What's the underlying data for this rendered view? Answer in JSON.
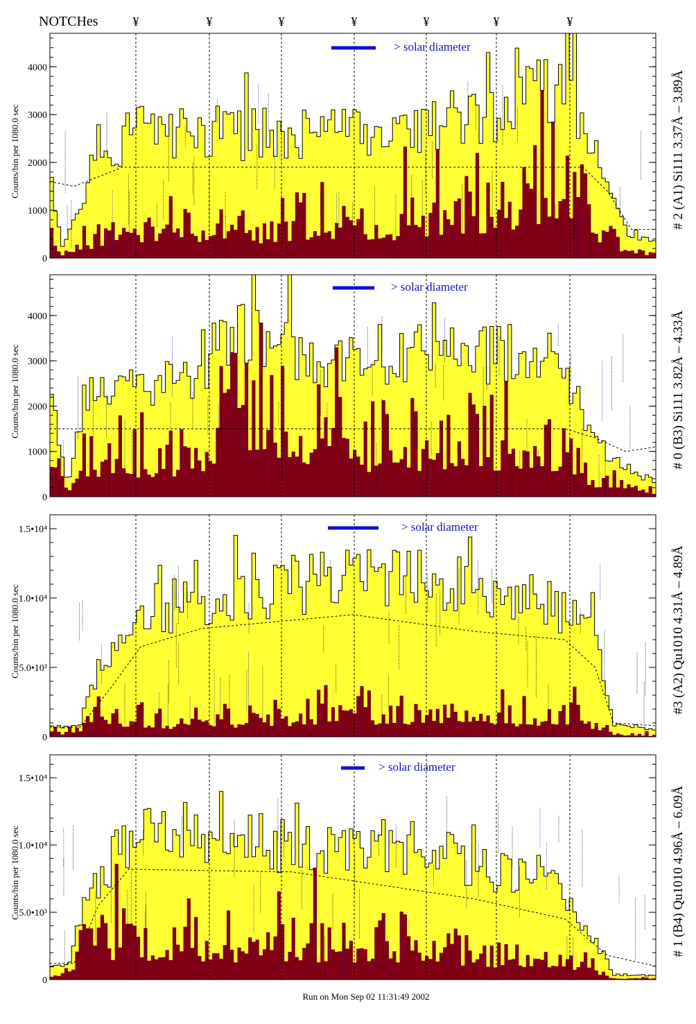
{
  "header": {
    "notches_label": "NOTCHes",
    "notch_symbol": "¥",
    "notch_count": 7
  },
  "footer": {
    "run_label": "Run on Mon Sep 02 11:31:49 2002"
  },
  "colors": {
    "yellow_fill": "#ffff33",
    "dark_fill": "#800018",
    "annotation_blue": "#1010d0",
    "annotation_purple": "#800080"
  },
  "chart_data": [
    {
      "type": "area",
      "panel_label": "# 2 (A1) Si111  3.37Å – 3.89Å",
      "ylabel": "Counts/bin per   1080.0 sec",
      "ylim": [
        0,
        4700
      ],
      "yticks": [
        0,
        1000,
        2000,
        3000,
        4000
      ],
      "ytick_labels": [
        "0",
        "1000",
        "2000",
        "3000",
        "4000"
      ],
      "legend_text": "> solar diameter",
      "series": [
        {
          "name": "total counts",
          "shape": [
            [
              0,
              1800
            ],
            [
              0.02,
              200
            ],
            [
              0.08,
              2200
            ],
            [
              0.15,
              2700
            ],
            [
              0.3,
              2600
            ],
            [
              0.5,
              2700
            ],
            [
              0.6,
              2800
            ],
            [
              0.7,
              2900
            ],
            [
              0.8,
              3400
            ],
            [
              0.85,
              3800
            ],
            [
              0.9,
              2200
            ],
            [
              0.95,
              600
            ],
            [
              1,
              300
            ]
          ]
        },
        {
          "name": "background counts",
          "shape": [
            [
              0,
              800
            ],
            [
              0.02,
              100
            ],
            [
              0.08,
              500
            ],
            [
              0.15,
              600
            ],
            [
              0.3,
              650
            ],
            [
              0.5,
              800
            ],
            [
              0.6,
              800
            ],
            [
              0.7,
              1000
            ],
            [
              0.8,
              1500
            ],
            [
              0.85,
              1800
            ],
            [
              0.9,
              800
            ],
            [
              0.95,
              200
            ],
            [
              1,
              100
            ]
          ]
        },
        {
          "name": "average level",
          "shape": [
            [
              0,
              1600
            ],
            [
              0.04,
              1500
            ],
            [
              0.08,
              1700
            ],
            [
              0.12,
              1900
            ],
            [
              0.88,
              1900
            ],
            [
              0.92,
              1400
            ],
            [
              0.96,
              600
            ],
            [
              1,
              600
            ]
          ]
        }
      ]
    },
    {
      "type": "area",
      "panel_label": "# 0 (B3) Si111  3.82Å – 4.33Å",
      "ylabel": "Counts/bin per   1080.0 sec",
      "ylim": [
        0,
        4900
      ],
      "yticks": [
        0,
        1000,
        2000,
        3000,
        4000
      ],
      "ytick_labels": [
        "0",
        "1000",
        "2000",
        "3000",
        "4000"
      ],
      "legend_text": "> solar diameter",
      "series": [
        {
          "name": "total counts",
          "shape": [
            [
              0,
              1800
            ],
            [
              0.03,
              300
            ],
            [
              0.06,
              2300
            ],
            [
              0.2,
              2500
            ],
            [
              0.25,
              2800
            ],
            [
              0.3,
              3800
            ],
            [
              0.4,
              3300
            ],
            [
              0.5,
              2900
            ],
            [
              0.7,
              3200
            ],
            [
              0.85,
              3000
            ],
            [
              0.9,
              1200
            ],
            [
              0.95,
              700
            ],
            [
              1,
              300
            ]
          ]
        },
        {
          "name": "background counts",
          "shape": [
            [
              0,
              1000
            ],
            [
              0.03,
              100
            ],
            [
              0.06,
              900
            ],
            [
              0.2,
              900
            ],
            [
              0.25,
              1100
            ],
            [
              0.3,
              2200
            ],
            [
              0.4,
              1700
            ],
            [
              0.5,
              1200
            ],
            [
              0.7,
              1300
            ],
            [
              0.85,
              1200
            ],
            [
              0.9,
              400
            ],
            [
              0.95,
              300
            ],
            [
              1,
              100
            ]
          ]
        },
        {
          "name": "average level",
          "shape": [
            [
              0,
              1500
            ],
            [
              0.04,
              1500
            ],
            [
              0.08,
              1500
            ],
            [
              0.85,
              1500
            ],
            [
              0.9,
              1300
            ],
            [
              0.95,
              1000
            ],
            [
              1,
              1100
            ]
          ]
        }
      ]
    },
    {
      "type": "area",
      "panel_label": "#3 (A2) Qu1010  4.31Å – 4.89Å",
      "ylabel": "Counts/bin per   1080.0 sec",
      "ylim": [
        0,
        16000
      ],
      "yticks": [
        0,
        5000,
        10000,
        15000
      ],
      "ytick_labels": [
        "0",
        "5.0•10³",
        "1.0•10⁴",
        "1.5•10⁴"
      ],
      "legend_text": "> solar diameter",
      "series": [
        {
          "name": "total counts",
          "shape": [
            [
              0,
              700
            ],
            [
              0.05,
              900
            ],
            [
              0.08,
              5000
            ],
            [
              0.15,
              9000
            ],
            [
              0.3,
              10500
            ],
            [
              0.5,
              11800
            ],
            [
              0.7,
              10800
            ],
            [
              0.85,
              9300
            ],
            [
              0.9,
              7000
            ],
            [
              0.93,
              900
            ],
            [
              1,
              600
            ]
          ]
        },
        {
          "name": "background counts",
          "shape": [
            [
              0,
              400
            ],
            [
              0.05,
              300
            ],
            [
              0.08,
              2000
            ],
            [
              0.15,
              1200
            ],
            [
              0.3,
              1400
            ],
            [
              0.5,
              2000
            ],
            [
              0.7,
              1700
            ],
            [
              0.85,
              1500
            ],
            [
              0.9,
              1200
            ],
            [
              0.93,
              200
            ],
            [
              1,
              100
            ]
          ]
        },
        {
          "name": "average level",
          "shape": [
            [
              0,
              700
            ],
            [
              0.05,
              700
            ],
            [
              0.1,
              3500
            ],
            [
              0.15,
              6500
            ],
            [
              0.25,
              7800
            ],
            [
              0.5,
              8800
            ],
            [
              0.7,
              7600
            ],
            [
              0.85,
              7000
            ],
            [
              0.9,
              5000
            ],
            [
              0.93,
              1000
            ],
            [
              1,
              800
            ]
          ]
        }
      ]
    },
    {
      "type": "area",
      "panel_label": "# 1 (B4) Qu1010 4.96Å – 6.09Å",
      "ylabel": "Counts/bin per   1080.0 sec",
      "ylim": [
        0,
        16700
      ],
      "yticks": [
        0,
        5000,
        10000,
        15000
      ],
      "ytick_labels": [
        "0",
        "5.0•10³",
        "1.0•10⁴",
        "1.5•10⁴"
      ],
      "legend_text": "> solar diameter",
      "series": [
        {
          "name": "total counts",
          "shape": [
            [
              0,
              800
            ],
            [
              0.03,
              1200
            ],
            [
              0.06,
              6000
            ],
            [
              0.12,
              10000
            ],
            [
              0.2,
              11500
            ],
            [
              0.3,
              10500
            ],
            [
              0.45,
              9800
            ],
            [
              0.6,
              10000
            ],
            [
              0.75,
              8000
            ],
            [
              0.85,
              6500
            ],
            [
              0.9,
              3000
            ],
            [
              0.93,
              400
            ],
            [
              1,
              300
            ]
          ]
        },
        {
          "name": "background counts",
          "shape": [
            [
              0,
              300
            ],
            [
              0.03,
              500
            ],
            [
              0.06,
              3500
            ],
            [
              0.12,
              3000
            ],
            [
              0.2,
              3200
            ],
            [
              0.3,
              2800
            ],
            [
              0.45,
              2600
            ],
            [
              0.6,
              2800
            ],
            [
              0.75,
              1800
            ],
            [
              0.85,
              1700
            ],
            [
              0.9,
              1000
            ],
            [
              0.93,
              100
            ],
            [
              1,
              100
            ]
          ]
        },
        {
          "name": "average level",
          "shape": [
            [
              0,
              1200
            ],
            [
              0.04,
              1200
            ],
            [
              0.08,
              5500
            ],
            [
              0.13,
              8200
            ],
            [
              0.4,
              8000
            ],
            [
              0.7,
              6000
            ],
            [
              0.85,
              4500
            ],
            [
              0.92,
              1800
            ],
            [
              1,
              1000
            ]
          ]
        }
      ]
    }
  ]
}
